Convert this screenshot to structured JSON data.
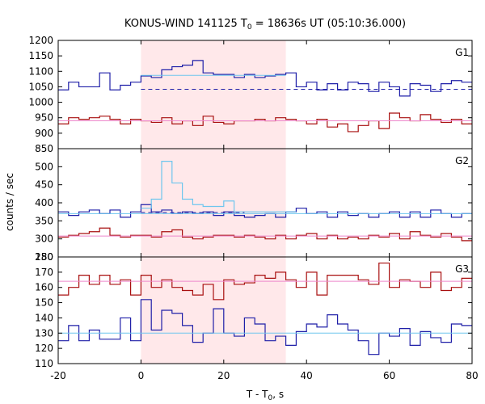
{
  "title_parts": {
    "prefix": "KONUS-WIND 141125 T",
    "sub": "0",
    "suffix": " = 18636s UT (05:10:36.000)"
  },
  "ylabel": "counts / sec",
  "xlabel_parts": {
    "prefix": "T - T",
    "sub": "0",
    "suffix": ", s"
  },
  "colors": {
    "blue": "#1f1fa8",
    "red": "#a80f0f",
    "cyan": "#6ec6ee",
    "pink": "#ee88cc",
    "shade": "#ffe8ea"
  },
  "chart_data": {
    "type": "line",
    "shared_x": {
      "range": [
        -20,
        80
      ],
      "ticks": [
        -20,
        0,
        20,
        40,
        60,
        80
      ],
      "bin_edges": [
        -20,
        -17.5,
        -15,
        -12.5,
        -10,
        -7.5,
        -5,
        -2.5,
        0,
        2.5,
        5,
        7.5,
        10,
        12.5,
        15,
        17.5,
        20,
        22.5,
        25,
        27.5,
        30,
        32.5,
        35,
        37.5,
        40,
        42.5,
        45,
        47.5,
        50,
        52.5,
        55,
        57.5,
        60,
        62.5,
        65,
        67.5,
        70,
        72.5,
        75,
        77.5,
        80
      ]
    },
    "highlight_interval": [
      0,
      35
    ],
    "panels": [
      {
        "label": "G1",
        "ylim": [
          850,
          1200
        ],
        "yticks": [
          850,
          900,
          950,
          1000,
          1050,
          1100,
          1150,
          1200
        ],
        "series": [
          {
            "color_key": "blue",
            "values": [
              1040,
              1065,
              1050,
              1050,
              1095,
              1040,
              1055,
              1065,
              1085,
              1080,
              1105,
              1115,
              1120,
              1135,
              1095,
              1090,
              1090,
              1080,
              1090,
              1080,
              1085,
              1090,
              1095,
              1050,
              1065,
              1040,
              1060,
              1040,
              1065,
              1060,
              1035,
              1065,
              1050,
              1020,
              1060,
              1055,
              1035,
              1060,
              1070,
              1065
            ]
          },
          {
            "color_key": "red",
            "values": [
              930,
              950,
              945,
              950,
              955,
              945,
              930,
              945,
              940,
              935,
              950,
              930,
              940,
              925,
              955,
              935,
              930,
              940,
              940,
              945,
              940,
              950,
              945,
              940,
              930,
              945,
              920,
              930,
              905,
              925,
              940,
              915,
              965,
              950,
              940,
              960,
              945,
              935,
              945,
              930
            ]
          }
        ],
        "reference_lines": [
          {
            "color_key": "cyan",
            "style": "solid",
            "y": 1087,
            "x": [
              0,
              35
            ]
          },
          {
            "color_key": "blue",
            "style": "dashed",
            "y": 1042,
            "x": [
              0,
              80
            ]
          },
          {
            "color_key": "pink",
            "style": "solid",
            "y": 940,
            "x": [
              -20,
              80
            ]
          }
        ]
      },
      {
        "label": "G2",
        "ylim": [
          250,
          550
        ],
        "yticks": [
          250,
          300,
          350,
          400,
          450,
          500
        ],
        "series": [
          {
            "color_key": "blue",
            "values": [
              375,
              365,
              375,
              380,
              370,
              380,
              360,
              375,
              395,
              375,
              380,
              370,
              375,
              370,
              375,
              365,
              375,
              365,
              360,
              365,
              370,
              360,
              375,
              385,
              370,
              375,
              360,
              375,
              365,
              370,
              360,
              370,
              375,
              360,
              375,
              360,
              380,
              370,
              360,
              370
            ]
          },
          {
            "color_key": "cyan",
            "values": [
              null,
              null,
              null,
              null,
              null,
              null,
              null,
              null,
              385,
              410,
              515,
              455,
              410,
              395,
              390,
              390,
              405,
              375,
              375,
              375,
              375,
              375,
              375,
              null,
              null,
              null,
              null,
              null,
              null,
              null,
              null,
              null,
              null,
              null,
              null,
              null,
              null,
              null,
              null,
              null
            ]
          },
          {
            "color_key": "red",
            "values": [
              305,
              310,
              315,
              320,
              330,
              310,
              305,
              310,
              310,
              305,
              320,
              325,
              305,
              300,
              305,
              310,
              310,
              305,
              310,
              305,
              300,
              310,
              300,
              310,
              315,
              300,
              310,
              300,
              305,
              300,
              310,
              305,
              315,
              300,
              320,
              310,
              305,
              315,
              305,
              295
            ]
          }
        ],
        "reference_lines": [
          {
            "color_key": "blue",
            "style": "dashed",
            "y": 373,
            "x": [
              0,
              25
            ]
          },
          {
            "color_key": "cyan",
            "style": "solid",
            "y": 370,
            "x": [
              -20,
              80
            ]
          },
          {
            "color_key": "pink",
            "style": "solid",
            "y": 308,
            "x": [
              -20,
              80
            ]
          }
        ]
      },
      {
        "label": "G3",
        "ylim": [
          110,
          180
        ],
        "yticks": [
          110,
          120,
          130,
          140,
          150,
          160,
          170,
          180
        ],
        "series": [
          {
            "color_key": "red",
            "values": [
              155,
              160,
              168,
              162,
              168,
              162,
              165,
              155,
              168,
              160,
              165,
              160,
              158,
              155,
              162,
              152,
              165,
              162,
              163,
              168,
              166,
              170,
              165,
              160,
              170,
              155,
              168,
              168,
              168,
              165,
              162,
              176,
              160,
              165,
              164,
              160,
              170,
              158,
              160,
              166
            ]
          },
          {
            "color_key": "blue",
            "values": [
              125,
              135,
              125,
              132,
              126,
              126,
              140,
              125,
              152,
              132,
              145,
              143,
              135,
              124,
              130,
              146,
              130,
              128,
              140,
              136,
              125,
              128,
              122,
              131,
              136,
              134,
              142,
              136,
              132,
              125,
              116,
              130,
              128,
              133,
              122,
              131,
              127,
              124,
              136,
              135
            ]
          }
        ],
        "reference_lines": [
          {
            "color_key": "pink",
            "style": "solid",
            "y": 164,
            "x": [
              -20,
              80
            ]
          },
          {
            "color_key": "cyan",
            "style": "solid",
            "y": 130,
            "x": [
              -20,
              80
            ]
          }
        ]
      }
    ]
  }
}
